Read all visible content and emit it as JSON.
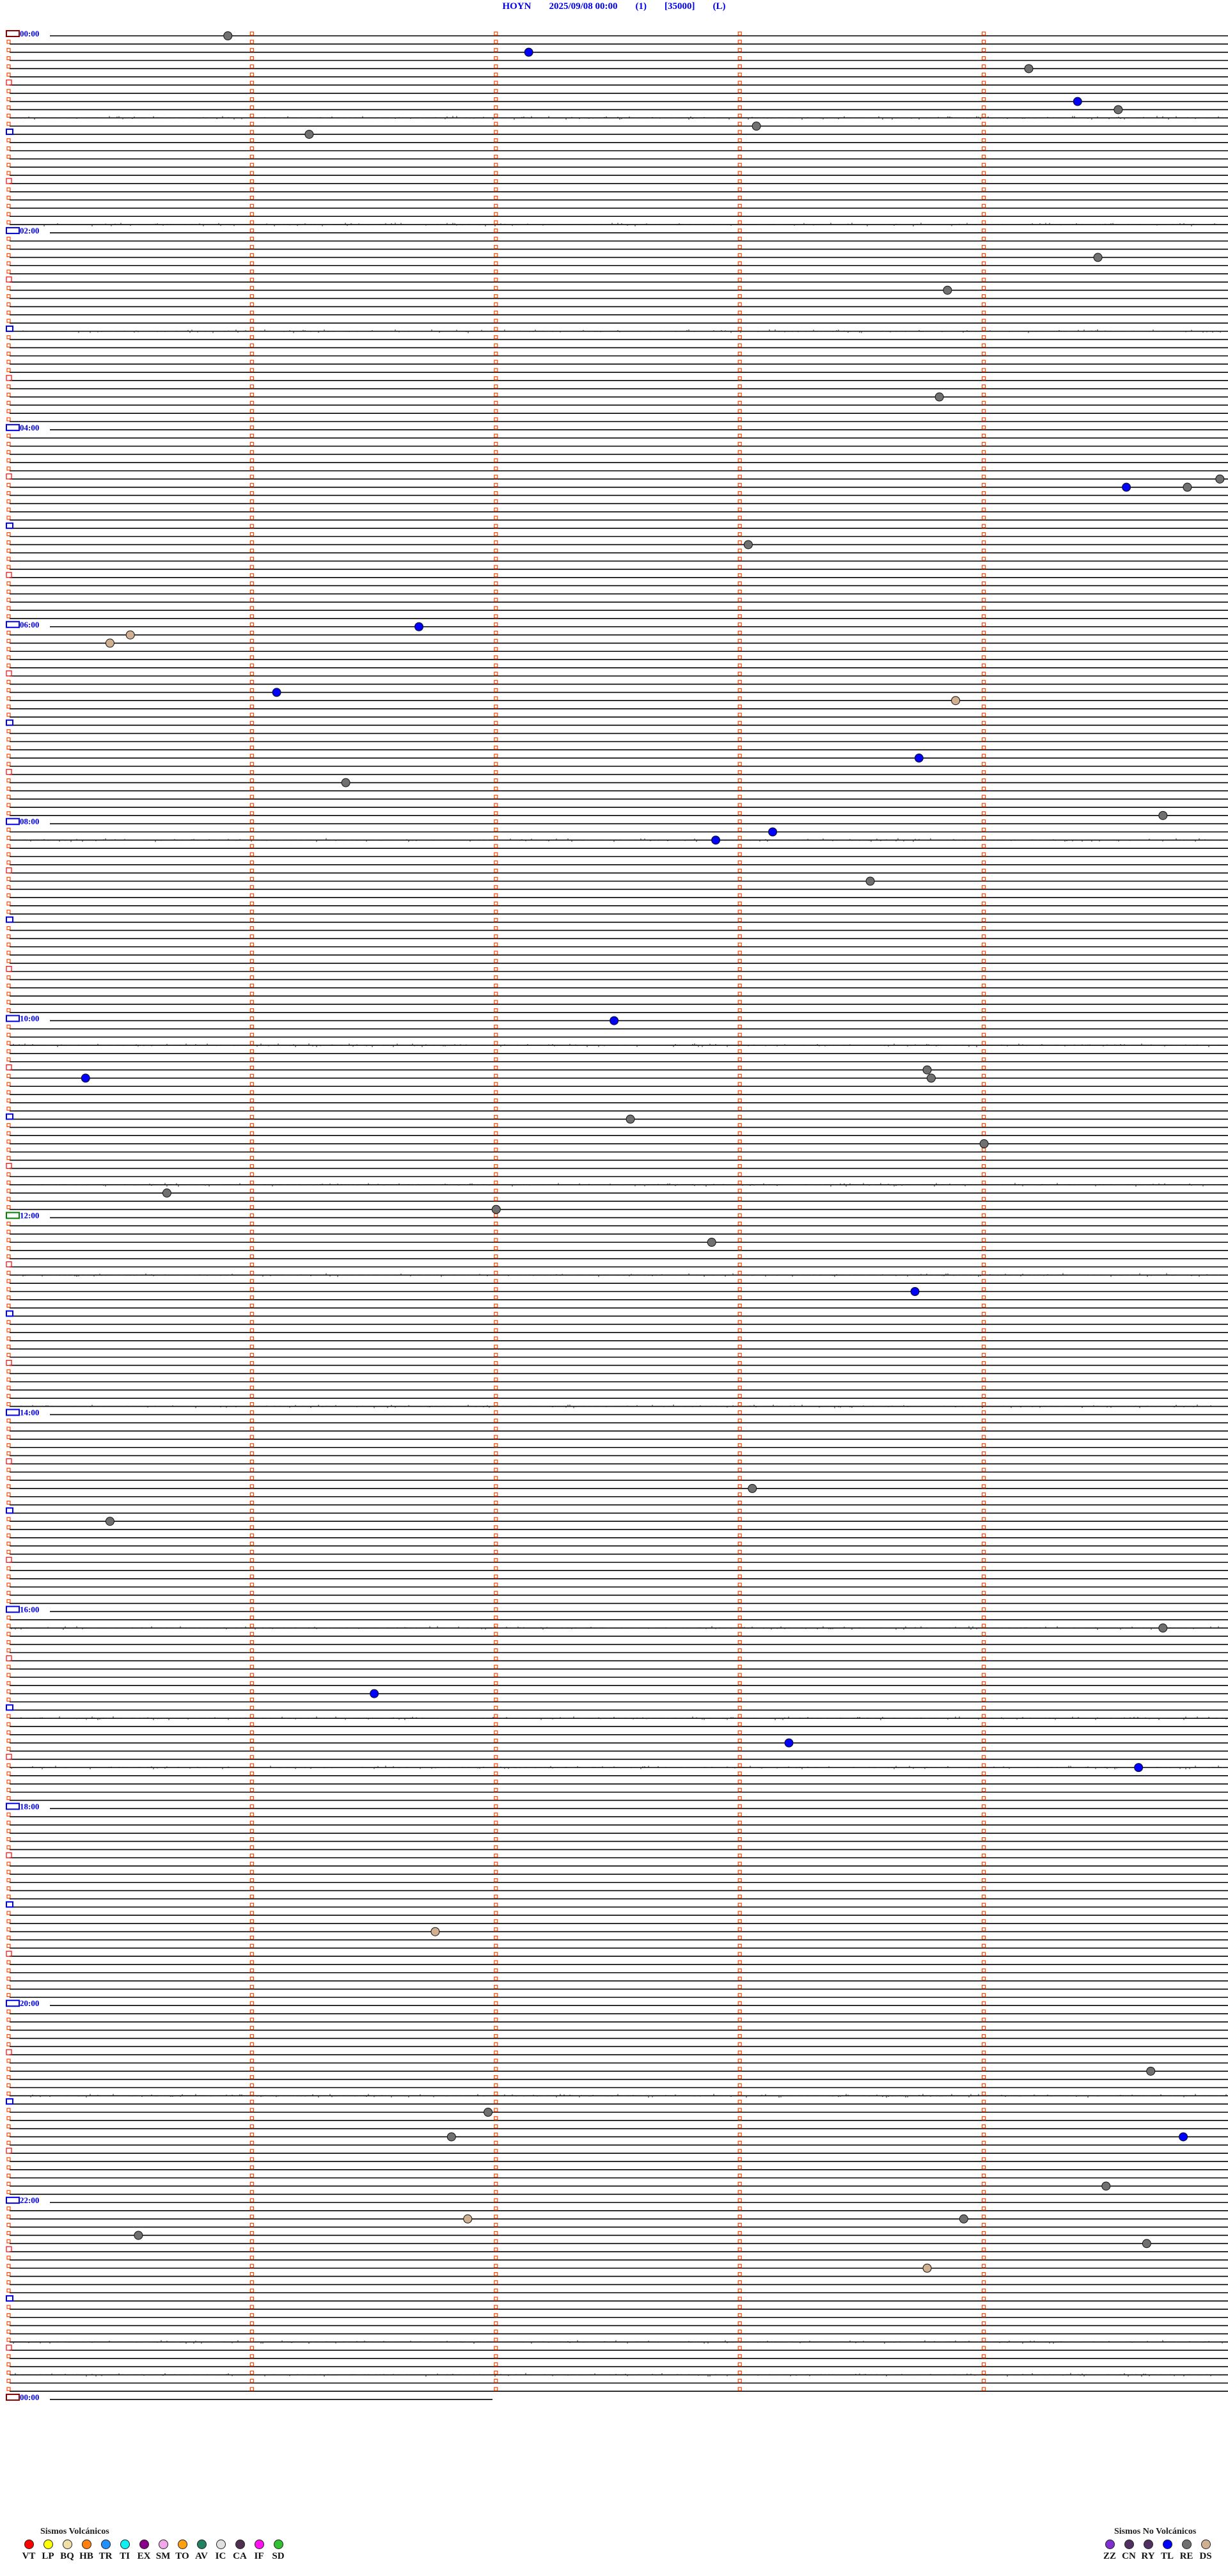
{
  "header": {
    "station": "HOYN",
    "datetime": "2025/09/08 00:00",
    "channel": "(1)",
    "scale": "[35000]",
    "filter": "(L)"
  },
  "chart_data": {
    "type": "scatter",
    "title": "HOYN 2025/09/08 00:00 (1) [35000] (L)",
    "minutes_per_row": 5,
    "rows": 288,
    "hour_labels": [
      "00:00",
      "02:00",
      "04:00",
      "06:00",
      "08:00",
      "10:00",
      "12:00",
      "14:00",
      "16:00",
      "18:00",
      "20:00",
      "22:00",
      "00:00"
    ],
    "trace_color": "#000000",
    "minute_marker_color": "#ff4500",
    "hour_marker_color": "#0000ee",
    "noisy_rows_start_times": [
      "00:50",
      "01:55",
      "03:00",
      "08:10",
      "10:15",
      "11:40",
      "12:35",
      "13:55",
      "16:10",
      "17:05",
      "17:35",
      "20:55",
      "23:25",
      "23:45"
    ],
    "events": [
      {
        "time": "00:00:54",
        "type": "RE"
      },
      {
        "time": "00:12:08",
        "type": "TL"
      },
      {
        "time": "00:24:11",
        "type": "RE"
      },
      {
        "time": "00:44:23",
        "type": "TL"
      },
      {
        "time": "00:49:33",
        "type": "RE"
      },
      {
        "time": "00:58:04",
        "type": "RE"
      },
      {
        "time": "01:01:14",
        "type": "RE"
      },
      {
        "time": "02:19:28",
        "type": "RE"
      },
      {
        "time": "02:38:51",
        "type": "RE"
      },
      {
        "time": "03:43:49",
        "type": "RE"
      },
      {
        "time": "04:34:58",
        "type": "RE"
      },
      {
        "time": "04:39:35",
        "type": "TL"
      },
      {
        "time": "04:39:50",
        "type": "RE"
      },
      {
        "time": "05:13:02",
        "type": "RE"
      },
      {
        "time": "06:01:41",
        "type": "TL"
      },
      {
        "time": "06:05:30",
        "type": "DS"
      },
      {
        "time": "06:10:25",
        "type": "DS"
      },
      {
        "time": "06:41:06",
        "type": "TL"
      },
      {
        "time": "06:48:53",
        "type": "DS"
      },
      {
        "time": "07:23:44",
        "type": "TL"
      },
      {
        "time": "07:36:23",
        "type": "RE"
      },
      {
        "time": "07:59:44",
        "type": "RE"
      },
      {
        "time": "08:08:08",
        "type": "TL"
      },
      {
        "time": "08:12:54",
        "type": "TL"
      },
      {
        "time": "08:38:32",
        "type": "RE"
      },
      {
        "time": "10:02:29",
        "type": "TL"
      },
      {
        "time": "10:33:46",
        "type": "RE"
      },
      {
        "time": "10:35:19",
        "type": "TL"
      },
      {
        "time": "10:38:47",
        "type": "RE"
      },
      {
        "time": "11:02:33",
        "type": "RE"
      },
      {
        "time": "11:19:00",
        "type": "RE"
      },
      {
        "time": "11:45:39",
        "type": "RE"
      },
      {
        "time": "11:57:00",
        "type": "RE"
      },
      {
        "time": "12:17:53",
        "type": "RE"
      },
      {
        "time": "12:48:43",
        "type": "TL"
      },
      {
        "time": "14:48:03",
        "type": "RE"
      },
      {
        "time": "15:05:25",
        "type": "RE"
      },
      {
        "time": "16:14:44",
        "type": "RE"
      },
      {
        "time": "16:51:30",
        "type": "TL"
      },
      {
        "time": "17:23:12",
        "type": "TL"
      },
      {
        "time": "17:39:38",
        "type": "TL"
      },
      {
        "time": "19:16:45",
        "type": "DS"
      },
      {
        "time": "20:44:41",
        "type": "RE"
      },
      {
        "time": "21:06:58",
        "type": "RE"
      },
      {
        "time": "21:21:49",
        "type": "RE"
      },
      {
        "time": "21:24:49",
        "type": "TL"
      },
      {
        "time": "21:54:30",
        "type": "RE"
      },
      {
        "time": "22:11:53",
        "type": "DS"
      },
      {
        "time": "22:13:55",
        "type": "RE"
      },
      {
        "time": "22:20:32",
        "type": "RE"
      },
      {
        "time": "22:29:40",
        "type": "RE"
      },
      {
        "time": "22:43:46",
        "type": "DS"
      }
    ]
  },
  "legend_volcanic": {
    "title": "Sismos Volcánicos",
    "items": [
      {
        "code": "VT",
        "color": "#ff0000"
      },
      {
        "code": "LP",
        "color": "#ffff00"
      },
      {
        "code": "BQ",
        "color": "#f0e0a8"
      },
      {
        "code": "HB",
        "color": "#ff8010"
      },
      {
        "code": "TR",
        "color": "#2090ff"
      },
      {
        "code": "TI",
        "color": "#10f0f0"
      },
      {
        "code": "EX",
        "color": "#880088"
      },
      {
        "code": "SM",
        "color": "#f0a8e8"
      },
      {
        "code": "TO",
        "color": "#ffa010"
      },
      {
        "code": "AV",
        "color": "#208060"
      },
      {
        "code": "IC",
        "color": "#e0e0e0"
      },
      {
        "code": "CA",
        "color": "#503050"
      },
      {
        "code": "IF",
        "color": "#ff10f0"
      },
      {
        "code": "SD",
        "color": "#30c030"
      }
    ]
  },
  "legend_non_volcanic": {
    "title": "Sismos No Volcánicos",
    "items": [
      {
        "code": "ZZ",
        "color": "#8030d0"
      },
      {
        "code": "CN",
        "color": "#503060"
      },
      {
        "code": "RY",
        "color": "#503060"
      },
      {
        "code": "TL",
        "color": "#0000ff"
      },
      {
        "code": "RE",
        "color": "#707070"
      },
      {
        "code": "DS",
        "color": "#d0b090"
      }
    ]
  }
}
